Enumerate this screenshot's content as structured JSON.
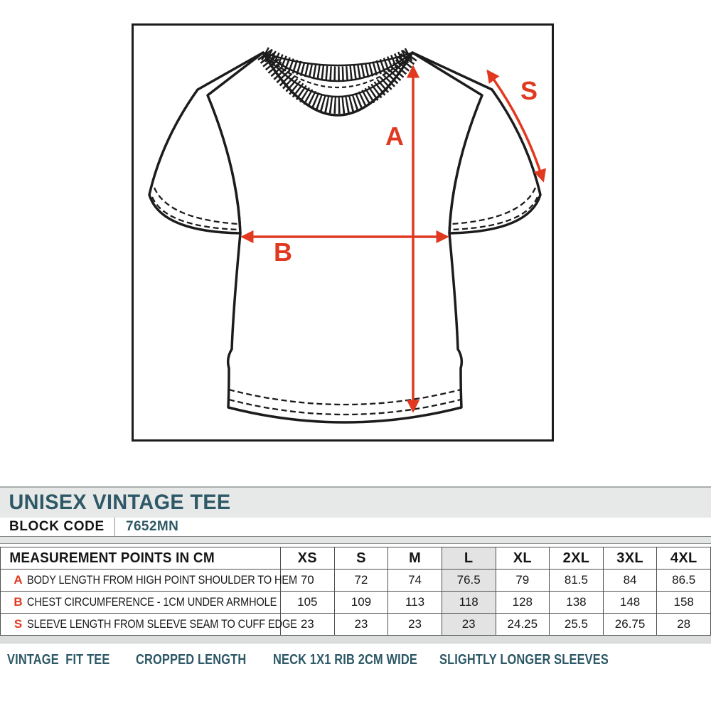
{
  "title": "UNISEX VINTAGE TEE",
  "block_code": {
    "label": "BLOCK CODE",
    "value": "7652MN"
  },
  "diagram": {
    "labels": {
      "length": "A",
      "chest": "B",
      "sleeve": "S"
    }
  },
  "table": {
    "header": "MEASUREMENT POINTS IN CM",
    "sizes": [
      "XS",
      "S",
      "M",
      "L",
      "XL",
      "2XL",
      "3XL",
      "4XL"
    ],
    "highlighted_size": "L",
    "rows": [
      {
        "key": "A",
        "label": "BODY LENGTH FROM HIGH POINT SHOULDER TO HEM",
        "values": [
          "70",
          "72",
          "74",
          "76.5",
          "79",
          "81.5",
          "84",
          "86.5"
        ]
      },
      {
        "key": "B",
        "label": "CHEST CIRCUMFERENCE - 1CM UNDER ARMHOLE",
        "values": [
          "105",
          "109",
          "113",
          "118",
          "128",
          "138",
          "148",
          "158"
        ]
      },
      {
        "key": "S",
        "label": "SLEEVE LENGTH FROM SLEEVE SEAM TO CUFF EDGE",
        "values": [
          "23",
          "23",
          "23",
          "23",
          "24.25",
          "25.5",
          "26.75",
          "28"
        ]
      }
    ]
  },
  "footer": {
    "items": [
      "VINTAGE  FIT TEE",
      "CROPPED LENGTH",
      "NECK 1X1 RIB 2CM WIDE",
      "SLIGHTLY LONGER SLEEVES"
    ]
  },
  "colors": {
    "accent_red": "#e0391f",
    "accent_teal": "#2d5866",
    "highlight_gray": "#e3e3e3"
  }
}
